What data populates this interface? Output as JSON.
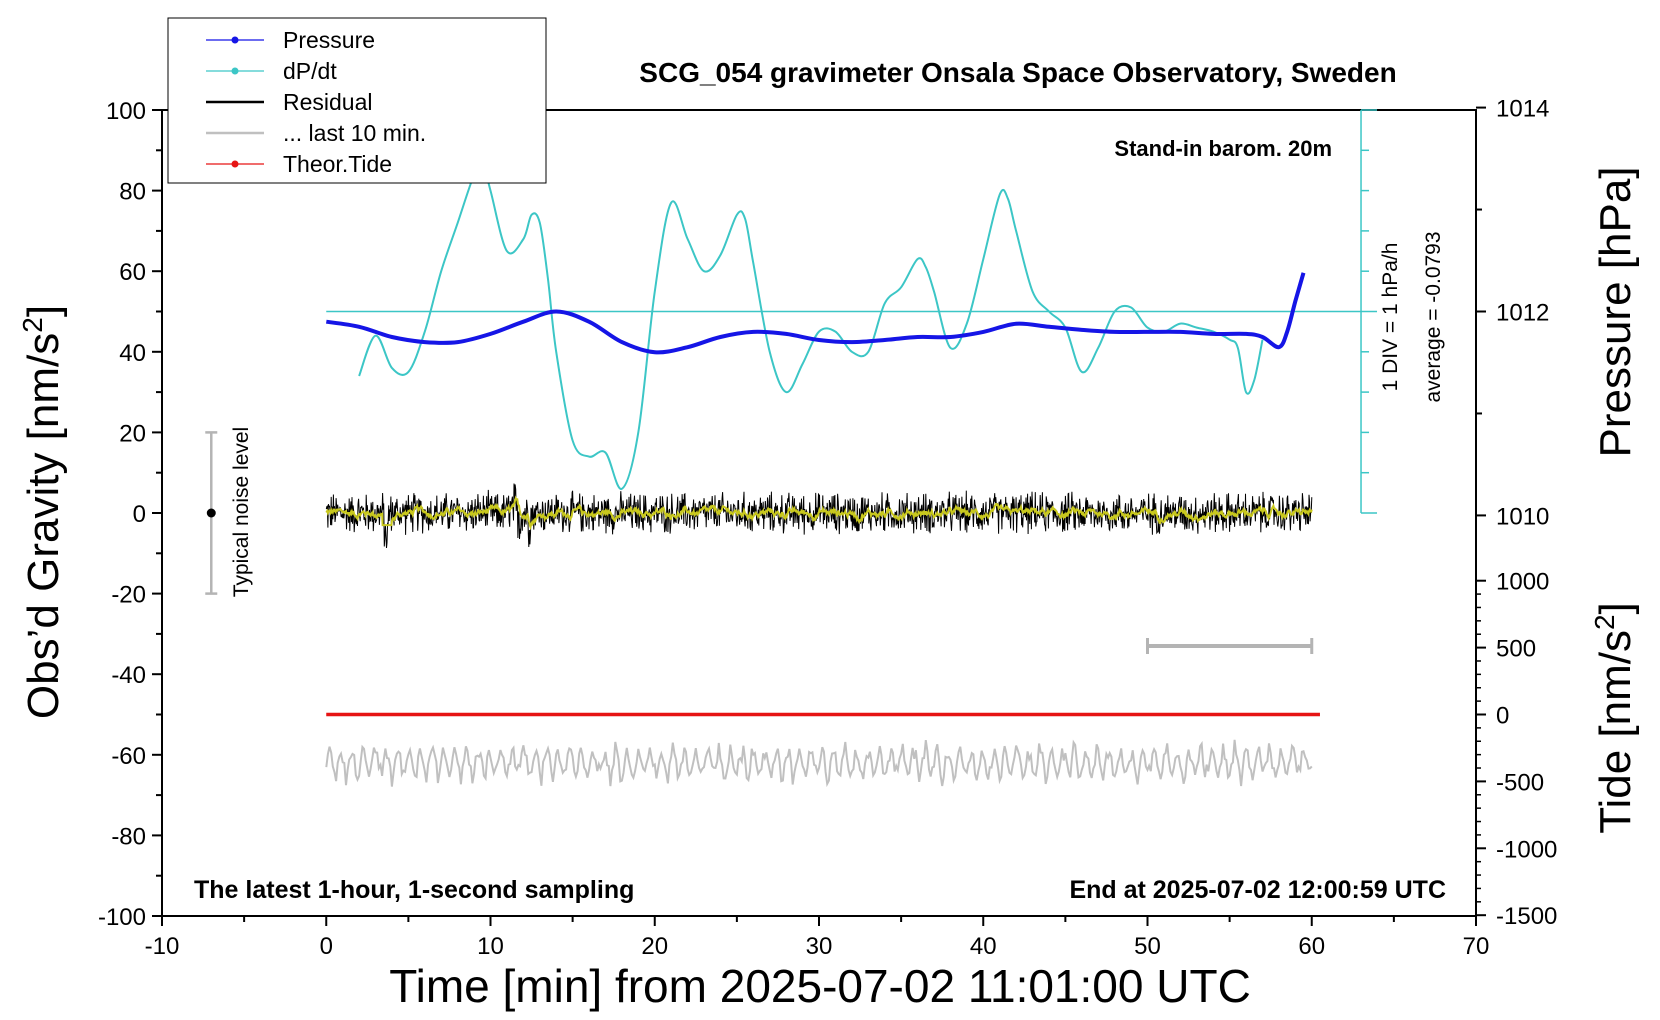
{
  "colors": {
    "pressure": "#1515e6",
    "dpdt": "#3cc6c6",
    "residual": "#000000",
    "last10": "#c0c0c0",
    "tide": "#e61414",
    "yellow": "#c8c81e",
    "noise_bar": "#b4b4b4"
  },
  "chart_data": {
    "type": "line",
    "title": "SCG_054 gravimeter Onsala Space Observatory, Sweden",
    "xlabel": "Time [min] from 2025-07-02 11:01:00 UTC",
    "ylabel_left_main": "Obs’d Gravity [nm/s",
    "ylabel_left_sup": "2",
    "ylabel_left_end": "]",
    "ylabel_right_pressure": "Pressure [hPa]",
    "ylabel_right_tide_main": "Tide [nm/s",
    "ylabel_right_tide_sup": "2",
    "ylabel_right_tide_end": "]",
    "xlim": [
      -10,
      70
    ],
    "ylim": [
      -100,
      100
    ],
    "x_ticks": [
      "-10",
      "0",
      "10",
      "20",
      "30",
      "40",
      "50",
      "60",
      "70"
    ],
    "y_ticks": [
      "100",
      "80",
      "60",
      "40",
      "20",
      "0",
      "-20",
      "-40",
      "-60",
      "-80",
      "-100"
    ],
    "pressure_ticks": [
      "1014",
      "1012",
      "1010"
    ],
    "pressure_tick_values": [
      1014,
      1012,
      1010
    ],
    "tide_ticks": [
      "1000",
      "500",
      "0",
      "-500",
      "-1000",
      "-1500"
    ],
    "tide_tick_values": [
      1000,
      500,
      0,
      -500,
      -1000,
      -1500
    ],
    "legend": {
      "position": "top-left",
      "items": [
        "Pressure",
        "dP/dt",
        "Residual",
        "... last 10 min.",
        "Theor.Tide"
      ]
    },
    "annotations": {
      "stand_in": "Stand-in barom. 20m",
      "div_label": "1 DIV = 1 hPa/h",
      "average_label": "average = -0.0793",
      "noise_label": "Typical noise level",
      "bottom_left": "The latest 1-hour, 1-second sampling",
      "bottom_right": "End at 2025-07-02 12:00:59 UTC"
    },
    "noise_bar": {
      "x": -7,
      "center": 0,
      "low": -20,
      "high": 20
    },
    "last10_bar": {
      "x_start": 50,
      "x_end": 60,
      "y": -33
    },
    "dpdt_reference": {
      "y": 50,
      "x_start": 0,
      "x_end": 63
    },
    "series": [
      {
        "name": "Pressure",
        "unit": "hPa",
        "x": [
          0,
          2,
          4,
          6,
          8,
          10,
          12,
          14,
          16,
          18,
          20,
          22,
          24,
          26,
          28,
          30,
          32,
          34,
          36,
          38,
          40,
          42,
          44,
          46,
          48,
          50,
          52,
          54,
          56,
          57,
          58,
          58.5,
          59,
          59.5
        ],
        "values": [
          1011.9,
          1011.85,
          1011.75,
          1011.7,
          1011.7,
          1011.78,
          1011.9,
          1012.0,
          1011.9,
          1011.7,
          1011.6,
          1011.65,
          1011.75,
          1011.8,
          1011.78,
          1011.72,
          1011.7,
          1011.72,
          1011.75,
          1011.75,
          1011.8,
          1011.88,
          1011.85,
          1011.82,
          1011.8,
          1011.8,
          1011.8,
          1011.78,
          1011.78,
          1011.75,
          1011.65,
          1011.8,
          1012.1,
          1012.38
        ]
      },
      {
        "name": "dP/dt",
        "unit": "nm/s2 display",
        "x": [
          2,
          3,
          4,
          5,
          6,
          7,
          8,
          9,
          9.5,
          10,
          11,
          12,
          12.5,
          13,
          13.5,
          14,
          15,
          16,
          17,
          18,
          19,
          20,
          21,
          22,
          23,
          24,
          25,
          25.5,
          26,
          27,
          28,
          29,
          30,
          31,
          32,
          33,
          34,
          35,
          36,
          36.5,
          37,
          38,
          39,
          40,
          41,
          41.5,
          42,
          43,
          44,
          45,
          46,
          47,
          48,
          49,
          50,
          51,
          52,
          53,
          54,
          55,
          55.5,
          56,
          56.5,
          57
        ],
        "values": [
          34,
          44,
          36,
          35,
          45,
          60,
          72,
          84,
          87,
          80,
          65,
          68,
          74,
          72,
          58,
          40,
          18,
          14,
          15,
          6,
          20,
          55,
          77,
          68,
          60,
          64,
          74,
          73,
          62,
          40,
          30,
          37,
          45,
          45,
          40,
          40,
          52,
          56,
          63,
          61,
          55,
          41,
          47,
          63,
          79,
          78,
          70,
          55,
          50,
          46,
          35,
          41,
          50,
          51,
          46,
          45,
          47,
          46,
          45,
          43,
          41,
          30,
          33,
          43
        ]
      },
      {
        "name": "Theor.Tide",
        "unit": "nm/s2",
        "x": [
          0,
          10,
          20,
          30,
          40,
          50,
          60
        ],
        "values": [
          0,
          0,
          0,
          0,
          0,
          0,
          0
        ]
      }
    ]
  }
}
